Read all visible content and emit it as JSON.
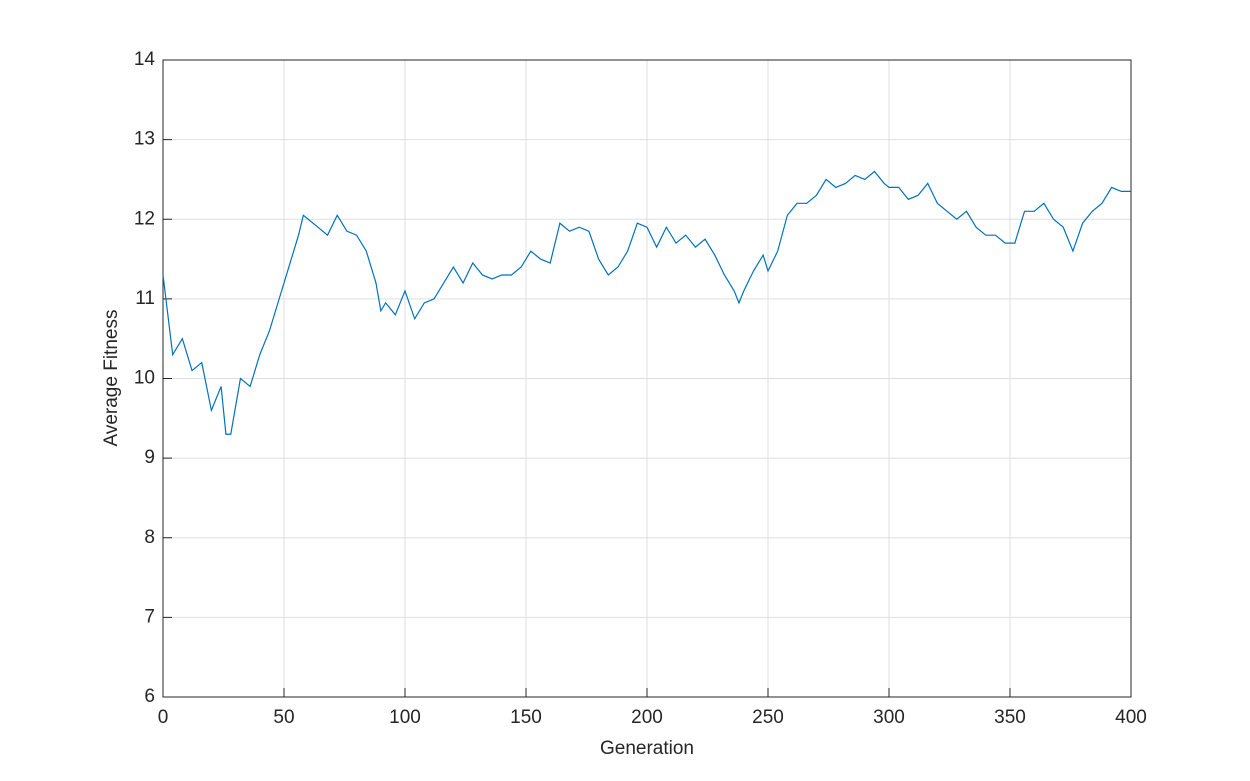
{
  "chart_data": {
    "type": "line",
    "xlabel": "Generation",
    "ylabel": "Average Fitness",
    "x": [
      0,
      4,
      8,
      12,
      16,
      20,
      24,
      26,
      28,
      32,
      36,
      40,
      44,
      48,
      52,
      56,
      58,
      60,
      64,
      68,
      72,
      76,
      80,
      84,
      88,
      90,
      92,
      96,
      100,
      104,
      108,
      112,
      116,
      120,
      124,
      128,
      132,
      136,
      140,
      144,
      148,
      152,
      156,
      160,
      164,
      168,
      172,
      176,
      180,
      184,
      188,
      192,
      196,
      200,
      204,
      208,
      212,
      216,
      220,
      224,
      228,
      232,
      236,
      238,
      240,
      244,
      248,
      250,
      254,
      258,
      262,
      266,
      270,
      274,
      278,
      282,
      286,
      290,
      294,
      298,
      300,
      304,
      308,
      312,
      316,
      320,
      324,
      328,
      332,
      336,
      340,
      344,
      348,
      352,
      356,
      360,
      364,
      368,
      372,
      376,
      380,
      384,
      388,
      392,
      396,
      400
    ],
    "series": [
      {
        "name": "Average Fitness",
        "color": "#0072bd",
        "values": [
          11.3,
          10.3,
          10.5,
          10.1,
          10.2,
          9.6,
          9.9,
          9.3,
          9.3,
          10.0,
          9.9,
          10.3,
          10.6,
          11.0,
          11.4,
          11.8,
          12.05,
          12.0,
          11.9,
          11.8,
          12.05,
          11.85,
          11.8,
          11.6,
          11.2,
          10.85,
          10.95,
          10.8,
          11.1,
          10.75,
          10.95,
          11.0,
          11.2,
          11.4,
          11.2,
          11.45,
          11.3,
          11.25,
          11.3,
          11.3,
          11.4,
          11.6,
          11.5,
          11.45,
          11.95,
          11.85,
          11.9,
          11.85,
          11.5,
          11.3,
          11.4,
          11.6,
          11.95,
          11.9,
          11.65,
          11.9,
          11.7,
          11.8,
          11.65,
          11.75,
          11.55,
          11.3,
          11.1,
          10.95,
          11.1,
          11.35,
          11.55,
          11.35,
          11.6,
          12.05,
          12.2,
          12.2,
          12.3,
          12.5,
          12.4,
          12.45,
          12.55,
          12.5,
          12.6,
          12.45,
          12.4,
          12.4,
          12.25,
          12.3,
          12.45,
          12.2,
          12.1,
          12.0,
          12.1,
          11.9,
          11.8,
          11.8,
          11.7,
          11.7,
          12.1,
          12.1,
          12.2,
          12.0,
          11.9,
          11.6,
          11.95,
          12.1,
          12.2,
          12.4,
          12.35,
          12.35
        ]
      }
    ],
    "xlim": [
      0,
      400
    ],
    "xticks": [
      0,
      50,
      100,
      150,
      200,
      250,
      300,
      350,
      400
    ],
    "ylim": [
      6,
      14
    ],
    "yticks": [
      6,
      7,
      8,
      9,
      10,
      11,
      12,
      13,
      14
    ],
    "grid": true
  }
}
